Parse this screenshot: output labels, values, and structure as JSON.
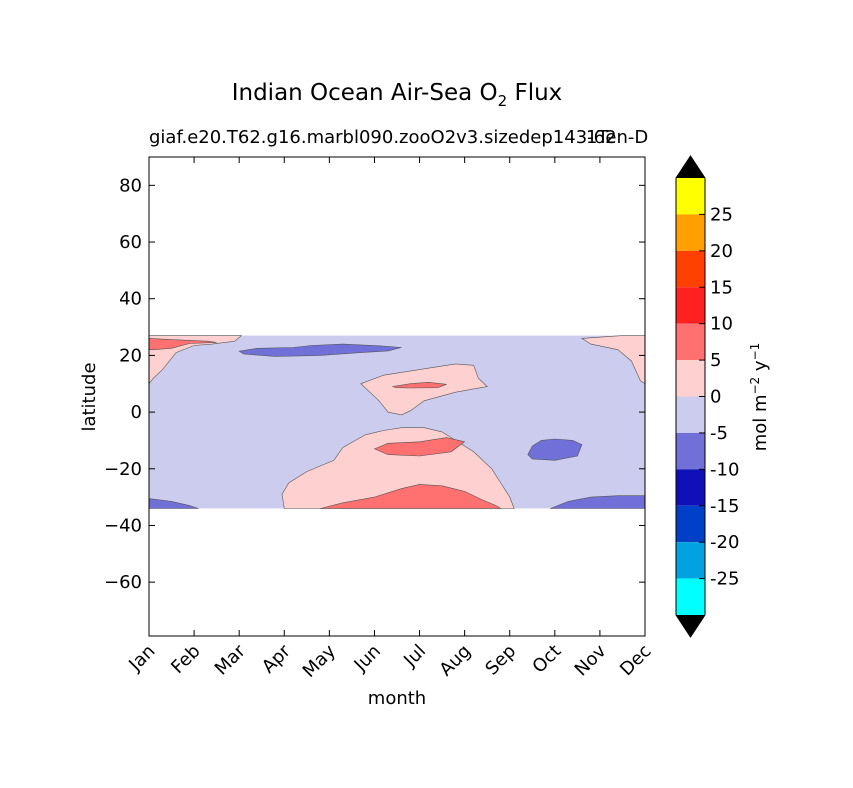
{
  "chart_data": {
    "type": "heatmap",
    "title": "Indian Ocean Air-Sea O",
    "title_subscript": "2",
    "title_suffix": "Flux",
    "subtitle": "giaf.e20.T62.g16.marbl090.zooO2v3.sizedep143-62",
    "subtitle_overlap": "1Ten-D",
    "xlabel": "month",
    "ylabel": "latitude",
    "x_categories": [
      "Jan",
      "Feb",
      "Mar",
      "Apr",
      "May",
      "Jun",
      "Jul",
      "Aug",
      "Sep",
      "Oct",
      "Nov",
      "Dec"
    ],
    "y_ticks": [
      80,
      60,
      40,
      20,
      0,
      -20,
      -40,
      -60
    ],
    "y_tick_labels": [
      "80",
      "60",
      "40",
      "20",
      "0",
      "−20",
      "−40",
      "−60"
    ],
    "ylim": [
      -79,
      90
    ],
    "data_lat_range": [
      -34,
      27
    ],
    "colorbar": {
      "label": "mol m",
      "label_sup1": "−2",
      "label_mid": "y",
      "label_sup2": "−1",
      "levels": [
        -30,
        -25,
        -20,
        -15,
        -10,
        -5,
        0,
        5,
        10,
        15,
        20,
        25,
        30
      ],
      "tick_labels": [
        "25",
        "20",
        "15",
        "10",
        "5",
        "0",
        "-5",
        "-10",
        "-15",
        "-20",
        "-25"
      ],
      "colors": [
        "#00ffff",
        "#00a3e0",
        "#0040c8",
        "#1010b8",
        "#7070d8",
        "#ccccee",
        "#ffd0d0",
        "#ff7070",
        "#ff2020",
        "#ff4000",
        "#ffa000",
        "#ffff00"
      ],
      "extend_colors": {
        "under": "#000000",
        "over": "#000000"
      }
    },
    "regions": [
      {
        "level": "0 to 5",
        "color": "#ffd0d0",
        "description": "positive flux band north of 10N in Jan-Feb and Nov-Dec"
      },
      {
        "level": "5 to 10",
        "color": "#ff7070",
        "description": "small patch near 25N in Jan"
      },
      {
        "level": "-5 to 0",
        "color": "#ccccee",
        "description": "background flux across most of the basin"
      },
      {
        "level": "-10 to -5",
        "color": "#7070d8",
        "description": "patch near 22N from Apr to Jun"
      },
      {
        "level": "0 to 5",
        "color": "#ffd0d0",
        "description": "Jul tongue near 10N"
      },
      {
        "level": "5 to 10",
        "color": "#ff7070",
        "description": "Jul patch near 9N"
      },
      {
        "level": "0 to 5",
        "color": "#ffd0d0",
        "description": "southern bulge May to Sep from -34 to 0"
      },
      {
        "level": "5 to 10",
        "color": "#ff7070",
        "description": "Jul patch near -13"
      },
      {
        "level": "5 to 10",
        "color": "#ff7070",
        "description": "Jul-Aug region near -30"
      },
      {
        "level": "-10 to -5",
        "color": "#7070d8",
        "description": "Oct patch near -13"
      },
      {
        "level": "-10 to -5",
        "color": "#7070d8",
        "description": "Jan band near -32"
      },
      {
        "level": "-10 to -5",
        "color": "#7070d8",
        "description": "Nov-Dec band near -31"
      }
    ]
  }
}
